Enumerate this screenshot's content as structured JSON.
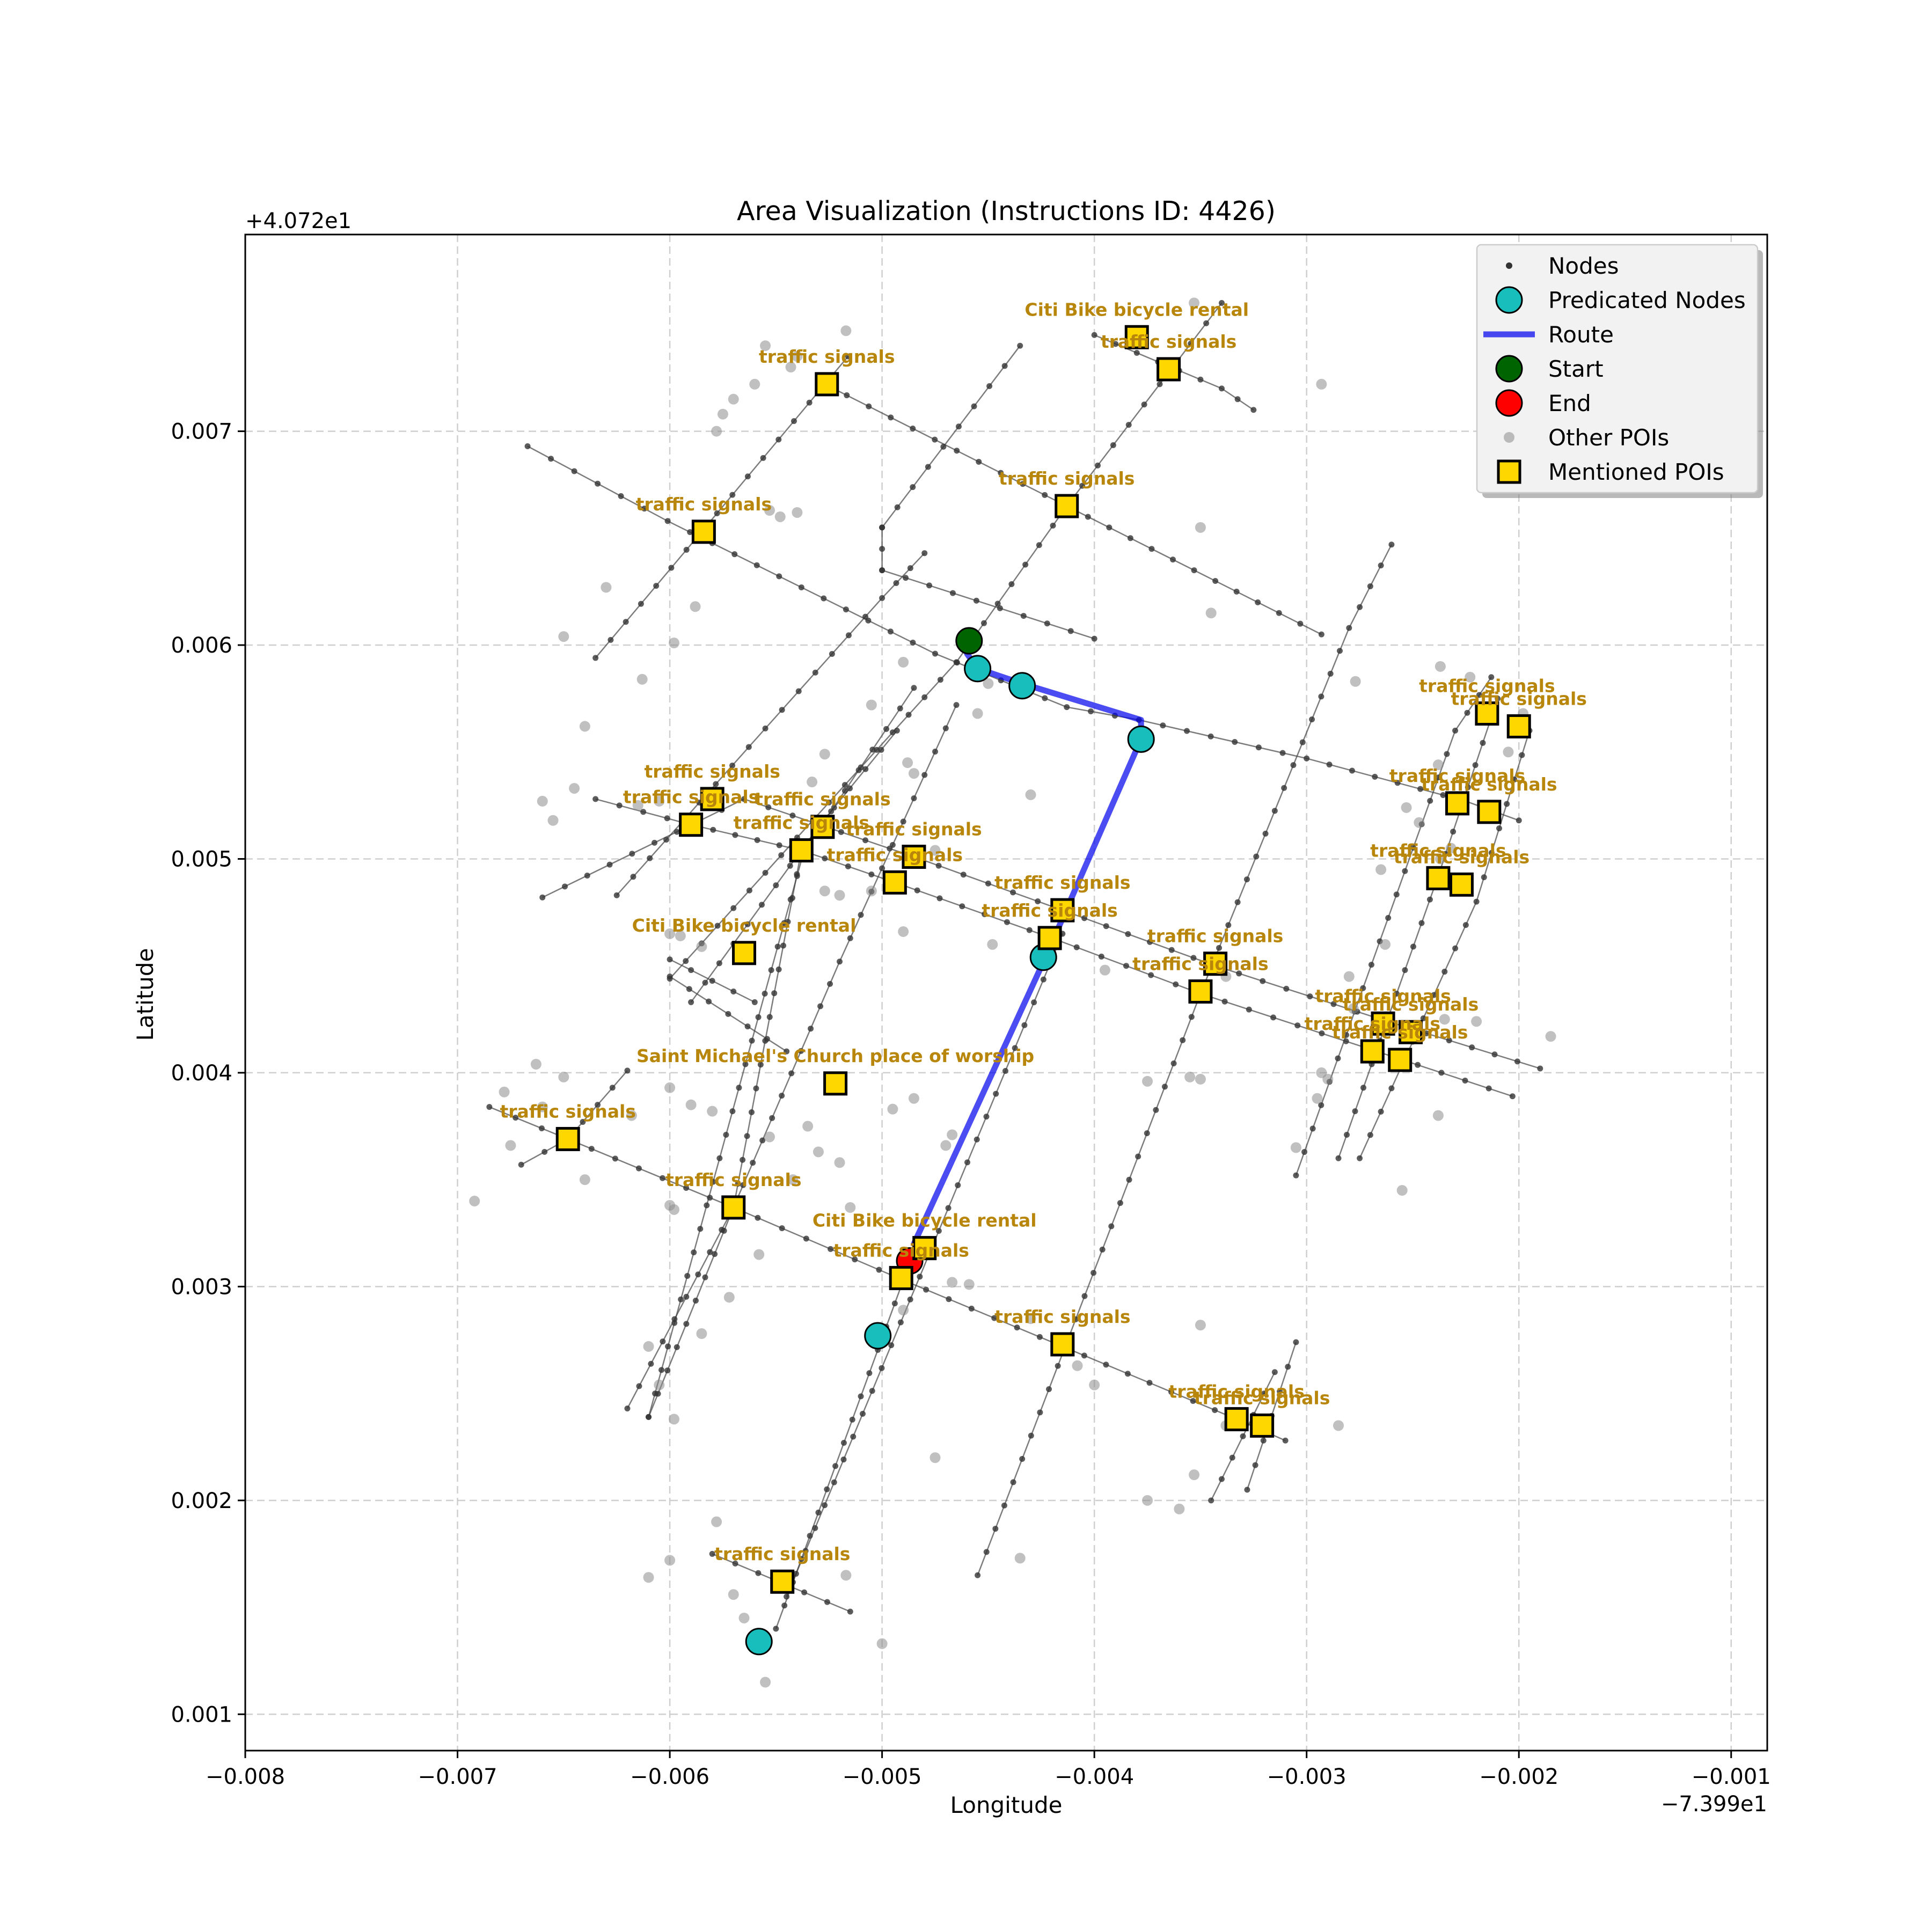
{
  "chart_data": {
    "type": "scatter",
    "title": "Area Visualization (Instructions ID: 4426)",
    "xlabel": "Longitude",
    "ylabel": "Latitude",
    "x_offset_label": "−7.399e1",
    "y_offset_label": "+4.072e1",
    "xlim": [
      -0.008,
      -0.00083
    ],
    "ylim": [
      0.00083,
      0.00792
    ],
    "x_ticks": [
      -0.008,
      -0.007,
      -0.006,
      -0.005,
      -0.004,
      -0.003,
      -0.002,
      -0.001
    ],
    "x_tick_labels": [
      "−0.008",
      "−0.007",
      "−0.006",
      "−0.005",
      "−0.004",
      "−0.003",
      "−0.002",
      "−0.001"
    ],
    "y_ticks": [
      0.001,
      0.002,
      0.003,
      0.004,
      0.005,
      0.006,
      0.007
    ],
    "y_tick_labels": [
      "0.001",
      "0.002",
      "0.003",
      "0.004",
      "0.005",
      "0.006",
      "0.007"
    ],
    "grid": true,
    "legend": {
      "placement": "top-right",
      "entries": [
        {
          "label": "Nodes",
          "marker": "node"
        },
        {
          "label": "Predicated Nodes",
          "marker": "pred"
        },
        {
          "label": "Route",
          "marker": "route"
        },
        {
          "label": "Start",
          "marker": "start"
        },
        {
          "label": "End",
          "marker": "end"
        },
        {
          "label": "Other POIs",
          "marker": "other"
        },
        {
          "label": "Mentioned POIs",
          "marker": "mentioned"
        }
      ]
    },
    "colors": {
      "node": "#333333",
      "predicated": "#17bebb",
      "route": "#0000ee",
      "start": "#006400",
      "end": "#ff0000",
      "other_poi": "#8c8c8c",
      "mentioned_poi": "#ffd700",
      "label": "#b8860b"
    },
    "streets": [
      [
        [
          -0.00667,
          0.00693
        ],
        [
          -0.00601,
          0.00658
        ],
        [
          -0.00475,
          0.00596
        ],
        [
          -0.00413,
          0.00571
        ],
        [
          -0.00379,
          0.00565
        ],
        [
          -0.003,
          0.00547
        ],
        [
          -0.00225,
          0.00527
        ],
        [
          -0.002,
          0.00518
        ]
      ],
      [
        [
          -0.00635,
          0.00594
        ],
        [
          -0.00585,
          0.00653
        ],
        [
          -0.00527,
          0.00722
        ],
        [
          -0.00516,
          0.00735
        ]
      ],
      [
        [
          -0.00527,
          0.00722
        ],
        [
          -0.00413,
          0.00665
        ],
        [
          -0.00293,
          0.00605
        ]
      ],
      [
        [
          -0.00625,
          0.00483
        ],
        [
          -0.00555,
          0.00561
        ],
        [
          -0.005,
          0.00622
        ],
        [
          -0.0048,
          0.00643
        ]
      ],
      [
        [
          -0.006,
          0.00444
        ],
        [
          -0.0054,
          0.0051
        ],
        [
          -0.00465,
          0.00592
        ],
        [
          -0.00413,
          0.00665
        ],
        [
          -0.0034,
          0.0076
        ]
      ],
      [
        [
          -0.005,
          0.00655
        ],
        [
          -0.00435,
          0.0074
        ]
      ],
      [
        [
          -0.005,
          0.00655
        ],
        [
          -0.005,
          0.00635
        ]
      ],
      [
        [
          -0.005,
          0.00635
        ],
        [
          -0.004,
          0.00603
        ]
      ],
      [
        [
          -0.0066,
          0.00482
        ],
        [
          -0.00565,
          0.00528
        ],
        [
          -0.00485,
          0.00501
        ],
        [
          -0.00415,
          0.00476
        ],
        [
          -0.00343,
          0.0045
        ],
        [
          -0.00265,
          0.00425
        ],
        [
          -0.0019,
          0.00402
        ]
      ],
      [
        [
          -0.00635,
          0.00528
        ],
        [
          -0.0059,
          0.00516
        ],
        [
          -0.00538,
          0.00504
        ],
        [
          -0.00494,
          0.00489
        ],
        [
          -0.0042,
          0.00463
        ],
        [
          -0.0035,
          0.00437
        ],
        [
          -0.0027,
          0.00411
        ],
        [
          -0.00203,
          0.00389
        ]
      ],
      [
        [
          -0.006,
          0.00453
        ],
        [
          -0.0056,
          0.00433
        ]
      ],
      [
        [
          -0.0059,
          0.00433
        ],
        [
          -0.0053,
          0.00515
        ],
        [
          -0.00493,
          0.0056
        ]
      ],
      [
        [
          -0.0061,
          0.00239
        ],
        [
          -0.0057,
          0.00337
        ],
        [
          -0.0052,
          0.00452
        ],
        [
          -0.00465,
          0.00572
        ]
      ],
      [
        [
          -0.0061,
          0.00239
        ],
        [
          -0.00537,
          0.00503
        ],
        [
          -0.00485,
          0.0058
        ]
      ],
      [
        [
          -0.0062,
          0.00243
        ],
        [
          -0.0057,
          0.00337
        ],
        [
          -0.00538,
          0.00504
        ]
      ],
      [
        [
          -0.006,
          0.00445
        ],
        [
          -0.00545,
          0.0041
        ]
      ],
      [
        [
          -0.00685,
          0.00384
        ],
        [
          -0.00648,
          0.00369
        ],
        [
          -0.0057,
          0.00337
        ],
        [
          -0.0049,
          0.00303
        ],
        [
          -0.00415,
          0.00272
        ],
        [
          -0.00333,
          0.00238
        ],
        [
          -0.0031,
          0.00228
        ]
      ],
      [
        [
          -0.0067,
          0.00357
        ],
        [
          -0.00648,
          0.00369
        ],
        [
          -0.0062,
          0.00401
        ]
      ],
      [
        [
          -0.0055,
          0.0014
        ],
        [
          -0.0049,
          0.00303
        ],
        [
          -0.0048,
          0.00318
        ]
      ],
      [
        [
          -0.0058,
          0.00175
        ],
        [
          -0.00515,
          0.00148
        ]
      ],
      [
        [
          -0.00455,
          0.00165
        ],
        [
          -0.0035,
          0.00437
        ],
        [
          -0.0028,
          0.00608
        ],
        [
          -0.0026,
          0.00647
        ]
      ],
      [
        [
          -0.00345,
          0.002
        ],
        [
          -0.00315,
          0.0026
        ]
      ],
      [
        [
          -0.00328,
          0.00205
        ],
        [
          -0.00305,
          0.00274
        ]
      ],
      [
        [
          -0.00305,
          0.00352
        ],
        [
          -0.0023,
          0.0056
        ],
        [
          -0.00213,
          0.00585
        ]
      ],
      [
        [
          -0.00285,
          0.0036
        ],
        [
          -0.00238,
          0.00492
        ],
        [
          -0.0021,
          0.00575
        ]
      ],
      [
        [
          -0.00275,
          0.0036
        ],
        [
          -0.0022,
          0.0048
        ],
        [
          -0.00195,
          0.0056
        ]
      ],
      [
        [
          -0.004,
          0.00745
        ],
        [
          -0.0034,
          0.0072
        ],
        [
          -0.00325,
          0.0071
        ]
      ],
      [
        [
          -0.00545,
          0.00155
        ],
        [
          -0.00415,
          0.00465
        ]
      ]
    ],
    "other_pois": [
      [
        -0.00555,
        0.0074
      ],
      [
        -0.00517,
        0.00747
      ],
      [
        -0.0054,
        0.00735
      ],
      [
        -0.0056,
        0.00722
      ],
      [
        -0.0057,
        0.00715
      ],
      [
        -0.00575,
        0.00708
      ],
      [
        -0.00578,
        0.007
      ],
      [
        -0.00543,
        0.0073
      ],
      [
        -0.00553,
        0.00663
      ],
      [
        -0.0054,
        0.00662
      ],
      [
        -0.00548,
        0.0066
      ],
      [
        -0.0063,
        0.00627
      ],
      [
        -0.00588,
        0.00618
      ],
      [
        -0.00613,
        0.00584
      ],
      [
        -0.00598,
        0.00601
      ],
      [
        -0.0065,
        0.00604
      ],
      [
        -0.0064,
        0.00562
      ],
      [
        -0.00605,
        0.00527
      ],
      [
        -0.0049,
        0.00592
      ],
      [
        -0.00505,
        0.00572
      ],
      [
        -0.00527,
        0.00549
      ],
      [
        -0.00488,
        0.00545
      ],
      [
        -0.00485,
        0.0054
      ],
      [
        -0.0045,
        0.00582
      ],
      [
        -0.00455,
        0.00568
      ],
      [
        -0.0043,
        0.0053
      ],
      [
        -0.00475,
        0.00504
      ],
      [
        -0.00505,
        0.00485
      ],
      [
        -0.0052,
        0.00483
      ],
      [
        -0.00527,
        0.00485
      ],
      [
        -0.00533,
        0.00536
      ],
      [
        -0.0049,
        0.00466
      ],
      [
        -0.00448,
        0.0046
      ],
      [
        -0.006,
        0.00465
      ],
      [
        -0.00595,
        0.00464
      ],
      [
        -0.00655,
        0.00518
      ],
      [
        -0.0066,
        0.00527
      ],
      [
        -0.00645,
        0.00533
      ],
      [
        -0.00615,
        0.00525
      ],
      [
        -0.00585,
        0.00459
      ],
      [
        -0.00353,
        0.0076
      ],
      [
        -0.00293,
        0.00722
      ],
      [
        -0.0035,
        0.00655
      ],
      [
        -0.00345,
        0.00615
      ],
      [
        -0.00277,
        0.00583
      ],
      [
        -0.00237,
        0.0059
      ],
      [
        -0.00223,
        0.00585
      ],
      [
        -0.00205,
        0.0055
      ],
      [
        -0.00198,
        0.00568
      ],
      [
        -0.00238,
        0.00544
      ],
      [
        -0.00247,
        0.00517
      ],
      [
        -0.00253,
        0.00524
      ],
      [
        -0.00232,
        0.00505
      ],
      [
        -0.00237,
        0.005
      ],
      [
        -0.00265,
        0.00495
      ],
      [
        -0.00263,
        0.0046
      ],
      [
        -0.0028,
        0.00445
      ],
      [
        -0.00278,
        0.0043
      ],
      [
        -0.00235,
        0.00425
      ],
      [
        -0.0022,
        0.00424
      ],
      [
        -0.00185,
        0.00417
      ],
      [
        -0.00355,
        0.00398
      ],
      [
        -0.0035,
        0.00397
      ],
      [
        -0.00375,
        0.00396
      ],
      [
        -0.00338,
        0.00445
      ],
      [
        -0.0029,
        0.00397
      ],
      [
        -0.00293,
        0.004
      ],
      [
        -0.00295,
        0.00388
      ],
      [
        -0.00305,
        0.00365
      ],
      [
        -0.00255,
        0.00345
      ],
      [
        -0.00238,
        0.0038
      ],
      [
        -0.00395,
        0.00448
      ],
      [
        -0.00422,
        0.00458
      ],
      [
        -0.00663,
        0.00404
      ],
      [
        -0.0065,
        0.00398
      ],
      [
        -0.0066,
        0.00384
      ],
      [
        -0.00678,
        0.00391
      ],
      [
        -0.00675,
        0.00366
      ],
      [
        -0.00692,
        0.0034
      ],
      [
        -0.0064,
        0.0035
      ],
      [
        -0.00618,
        0.0038
      ],
      [
        -0.006,
        0.00393
      ],
      [
        -0.006,
        0.00338
      ],
      [
        -0.00598,
        0.00336
      ],
      [
        -0.0059,
        0.00385
      ],
      [
        -0.0058,
        0.00382
      ],
      [
        -0.00535,
        0.00375
      ],
      [
        -0.0052,
        0.00358
      ],
      [
        -0.0053,
        0.00363
      ],
      [
        -0.00553,
        0.0037
      ],
      [
        -0.00558,
        0.00315
      ],
      [
        -0.00572,
        0.00295
      ],
      [
        -0.00515,
        0.00337
      ],
      [
        -0.00495,
        0.00383
      ],
      [
        -0.00485,
        0.00388
      ],
      [
        -0.0047,
        0.00366
      ],
      [
        -0.00467,
        0.00371
      ],
      [
        -0.0049,
        0.00289
      ],
      [
        -0.00467,
        0.00302
      ],
      [
        -0.0043,
        0.00285
      ],
      [
        -0.00408,
        0.00263
      ],
      [
        -0.004,
        0.00254
      ],
      [
        -0.0035,
        0.00282
      ],
      [
        -0.00338,
        0.00235
      ],
      [
        -0.00285,
        0.00235
      ],
      [
        -0.00353,
        0.00212
      ],
      [
        -0.0036,
        0.00196
      ],
      [
        -0.00375,
        0.002
      ],
      [
        -0.0061,
        0.00272
      ],
      [
        -0.00585,
        0.00278
      ],
      [
        -0.00598,
        0.00238
      ],
      [
        -0.00605,
        0.00254
      ],
      [
        -0.00475,
        0.0022
      ],
      [
        -0.00435,
        0.00173
      ],
      [
        -0.00578,
        0.0019
      ],
      [
        -0.006,
        0.00172
      ],
      [
        -0.0061,
        0.00164
      ],
      [
        -0.0057,
        0.00156
      ],
      [
        -0.00565,
        0.00145
      ],
      [
        -0.00555,
        0.00115
      ],
      [
        -0.00517,
        0.00165
      ],
      [
        -0.005,
        0.00133
      ],
      [
        -0.00542,
        0.0035
      ],
      [
        -0.00459,
        0.00301
      ]
    ],
    "route": [
      [
        -0.0046,
        0.00596
      ],
      [
        -0.00455,
        0.00589
      ],
      [
        -0.00434,
        0.00582
      ],
      [
        -0.00378,
        0.00565
      ],
      [
        -0.00378,
        0.00556
      ],
      [
        -0.00423,
        0.00454
      ],
      [
        -0.00485,
        0.0032
      ]
    ],
    "predicated_nodes": [
      [
        -0.00455,
        0.00589
      ],
      [
        -0.00434,
        0.00581
      ],
      [
        -0.00378,
        0.00556
      ],
      [
        -0.00424,
        0.00454
      ],
      [
        -0.00502,
        0.00277
      ],
      [
        -0.00558,
        0.00134
      ]
    ],
    "start": [
      -0.00459,
      0.00602
    ],
    "end": [
      -0.00487,
      0.00312
    ],
    "mentioned_pois": [
      {
        "label": "traffic signals",
        "x": -0.00526,
        "y": 0.00722
      },
      {
        "label": "Citi Bike bicycle rental",
        "x": -0.0038,
        "y": 0.00744
      },
      {
        "label": "traffic signals",
        "x": -0.00365,
        "y": 0.00729
      },
      {
        "label": "traffic signals",
        "x": -0.00584,
        "y": 0.00653
      },
      {
        "label": "traffic signals",
        "x": -0.00413,
        "y": 0.00665
      },
      {
        "label": "traffic signals",
        "x": -0.00215,
        "y": 0.00568
      },
      {
        "label": "traffic signals",
        "x": -0.002,
        "y": 0.00562
      },
      {
        "label": "traffic signals",
        "x": -0.0058,
        "y": 0.00528
      },
      {
        "label": "traffic signals",
        "x": -0.0059,
        "y": 0.00516
      },
      {
        "label": "traffic signals",
        "x": -0.00528,
        "y": 0.00515
      },
      {
        "label": "traffic signals",
        "x": -0.00538,
        "y": 0.00504
      },
      {
        "label": "traffic signals",
        "x": -0.00485,
        "y": 0.00501
      },
      {
        "label": "traffic signals",
        "x": -0.00494,
        "y": 0.00489
      },
      {
        "label": "traffic signals",
        "x": -0.00229,
        "y": 0.00526
      },
      {
        "label": "traffic signals",
        "x": -0.00214,
        "y": 0.00522
      },
      {
        "label": "traffic signals",
        "x": -0.00238,
        "y": 0.00491
      },
      {
        "label": "traffic signals",
        "x": -0.00227,
        "y": 0.00488
      },
      {
        "label": "traffic signals",
        "x": -0.00415,
        "y": 0.00476
      },
      {
        "label": "traffic signals",
        "x": -0.00421,
        "y": 0.00463
      },
      {
        "label": "Citi Bike bicycle rental",
        "x": -0.00565,
        "y": 0.00456
      },
      {
        "label": "traffic signals",
        "x": -0.00343,
        "y": 0.00451
      },
      {
        "label": "traffic signals",
        "x": -0.0035,
        "y": 0.00438
      },
      {
        "label": "traffic signals",
        "x": -0.00264,
        "y": 0.00423
      },
      {
        "label": "traffic signals",
        "x": -0.00251,
        "y": 0.00419
      },
      {
        "label": "traffic signals",
        "x": -0.00269,
        "y": 0.0041
      },
      {
        "label": "traffic signals",
        "x": -0.00256,
        "y": 0.00406
      },
      {
        "label": "Saint Michael's Church place of worship",
        "x": -0.00522,
        "y": 0.00395
      },
      {
        "label": "traffic signals",
        "x": -0.00648,
        "y": 0.00369
      },
      {
        "label": "traffic signals",
        "x": -0.0057,
        "y": 0.00337
      },
      {
        "label": "Citi Bike bicycle rental",
        "x": -0.0048,
        "y": 0.00318
      },
      {
        "label": "traffic signals",
        "x": -0.00491,
        "y": 0.00304
      },
      {
        "label": "traffic signals",
        "x": -0.00415,
        "y": 0.00273
      },
      {
        "label": "traffic signals",
        "x": -0.00333,
        "y": 0.00238
      },
      {
        "label": "traffic signals",
        "x": -0.00321,
        "y": 0.00235
      },
      {
        "label": "traffic signals",
        "x": -0.00547,
        "y": 0.00162
      }
    ]
  }
}
